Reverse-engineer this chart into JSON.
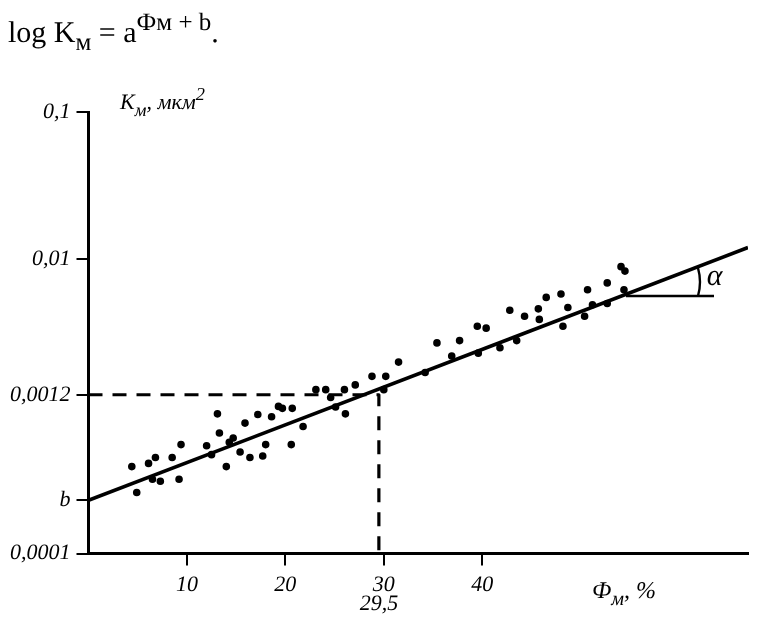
{
  "chart_data": {
    "type": "scatter",
    "title": "log K$_{м}$ = a$^{Фм + b}$.",
    "ylabel": "K$_{м}$, мкм$^{2}$",
    "xlabel": "Ф$_{м}$, %",
    "xlim": [
      0,
      67
    ],
    "xticks": [
      10,
      20,
      30,
      40
    ],
    "ylim": [
      0.0001,
      0.1
    ],
    "yticks": [
      {
        "value": 0.0001,
        "label": "0,0001"
      },
      {
        "value": 0.00023,
        "label": "b"
      },
      {
        "value": 0.0012,
        "label": "0,0012"
      },
      {
        "value": 0.01,
        "label": "0,01"
      },
      {
        "value": 0.1,
        "label": "0,1"
      }
    ],
    "log": "y",
    "grid": false,
    "legend": false,
    "annotations": [
      {
        "text": "α",
        "x": 62,
        "y": 0.0089
      },
      {
        "text": "29,5",
        "x": 29.5,
        "y": 0.0001
      }
    ],
    "series": [
      {
        "color": "#000000",
        "marker": "circle",
        "x": [
          4.4,
          4.9,
          6.1,
          6.8,
          6.5,
          7.3,
          8.5,
          9.2,
          9.4,
          12.0,
          12.5,
          13.1,
          13.3,
          14.0,
          14.3,
          14.7,
          15.4,
          15.9,
          16.4,
          17.2,
          17.7,
          18.0,
          18.6,
          19.3,
          19.7,
          20.6,
          20.7,
          21.8,
          23.1,
          24.1,
          24.6,
          25.1,
          26.1,
          26.0,
          27.1,
          28.8,
          30.0,
          30.2,
          31.5,
          34.2,
          35.4,
          36.9,
          37.7,
          39.5,
          39.6,
          40.4,
          41.8,
          42.8,
          43.5,
          44.3,
          45.7,
          45.8,
          46.5,
          48.0,
          48.2,
          48.7,
          50.4,
          50.7,
          51.2,
          52.7,
          52.7,
          54.1,
          54.4,
          54.5
        ],
        "values": [
          0.00039,
          0.00026,
          0.00041,
          0.00045,
          0.00032,
          0.00031,
          0.00045,
          0.00032,
          0.00055,
          0.00054,
          0.00047,
          0.00089,
          0.00066,
          0.00039,
          0.00057,
          0.00061,
          0.00049,
          0.00077,
          0.00045,
          0.00088,
          0.00046,
          0.00055,
          0.00085,
          0.001,
          0.00097,
          0.00055,
          0.00097,
          0.00073,
          0.0013,
          0.0013,
          0.00115,
          0.00099,
          0.00089,
          0.0013,
          0.0014,
          0.0016,
          0.0013,
          0.0016,
          0.002,
          0.0017,
          0.0027,
          0.0022,
          0.0028,
          0.0035,
          0.0023,
          0.0034,
          0.0025,
          0.0045,
          0.0028,
          0.0041,
          0.0046,
          0.0039,
          0.0055,
          0.0058,
          0.0035,
          0.0047,
          0.0041,
          0.0062,
          0.0049,
          0.005,
          0.0069,
          0.0089,
          0.0062,
          0.0083
        ]
      },
      {
        "type": "line",
        "color": "#000000",
        "line_style": "solid",
        "x": [
          0,
          67
        ],
        "values": [
          0.00023,
          0.012
        ]
      },
      {
        "type": "line",
        "color": "#000000",
        "line_style": "dashed",
        "x": [
          0,
          29.5,
          29.5
        ],
        "values": [
          0.0012,
          0.0012,
          0.0001
        ]
      }
    ]
  }
}
